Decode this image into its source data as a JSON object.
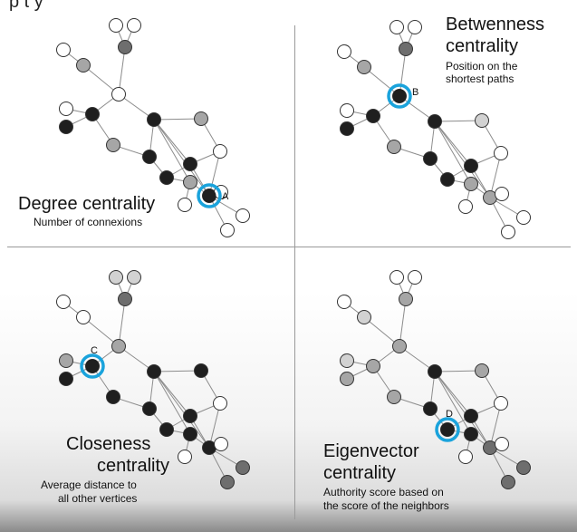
{
  "header_fragment": "p         t   y",
  "panels": [
    {
      "id": "degree",
      "title": "Degree centrality",
      "subtitle": "Number of connexions",
      "highlight_label": "A",
      "highlight_node": 13,
      "node_shades": [
        "w",
        "w",
        "w",
        "g",
        "d",
        "w",
        "w",
        "k",
        "k",
        "k",
        "g",
        "g",
        "k",
        "g",
        "k",
        "k",
        "g",
        "w",
        "w"
      ]
    },
    {
      "id": "betweenness",
      "title_lines": [
        "Betwenness",
        "centrality"
      ],
      "subtitle_lines": [
        "Position on the",
        "shortest paths"
      ],
      "highlight_label": "B",
      "highlight_node": 5,
      "node_shades": [
        "w",
        "w",
        "w",
        "g",
        "d",
        "w",
        "w",
        "k",
        "k",
        "k",
        "lg",
        "g",
        "k",
        "g",
        "k",
        "k",
        "g",
        "w",
        "w"
      ]
    },
    {
      "id": "closeness",
      "title_lines": [
        "Closeness",
        "centrality"
      ],
      "subtitle_lines": [
        "Average distance to",
        "all other vertices"
      ],
      "highlight_label": "C",
      "highlight_node": 8,
      "node_shades": [
        "w",
        "lg",
        "lg",
        "w",
        "d",
        "g",
        "g",
        "k",
        "k",
        "k",
        "k",
        "k",
        "k",
        "k",
        "k",
        "k",
        "k",
        "d",
        "d"
      ]
    },
    {
      "id": "eigenvector",
      "title_lines": [
        "Eigenvector",
        "centrality"
      ],
      "subtitle_lines": [
        "Authority score based on",
        "the score of the neighbors"
      ],
      "highlight_label": "D",
      "highlight_node": 14,
      "node_shades": [
        "w",
        "w",
        "w",
        "lg",
        "g",
        "g",
        "lg",
        "g",
        "g",
        "k",
        "g",
        "g",
        "k",
        "d",
        "k",
        "k",
        "k",
        "d",
        "d"
      ]
    }
  ],
  "colors": {
    "highlight_ring": "#1aa3dc",
    "white": "#ffffff",
    "light_gray": "#d2d2d2",
    "gray": "#a6a6a6",
    "dark_gray": "#6e6e6e",
    "black": "#1f1f1f",
    "edge": "#8c8c8c"
  }
}
